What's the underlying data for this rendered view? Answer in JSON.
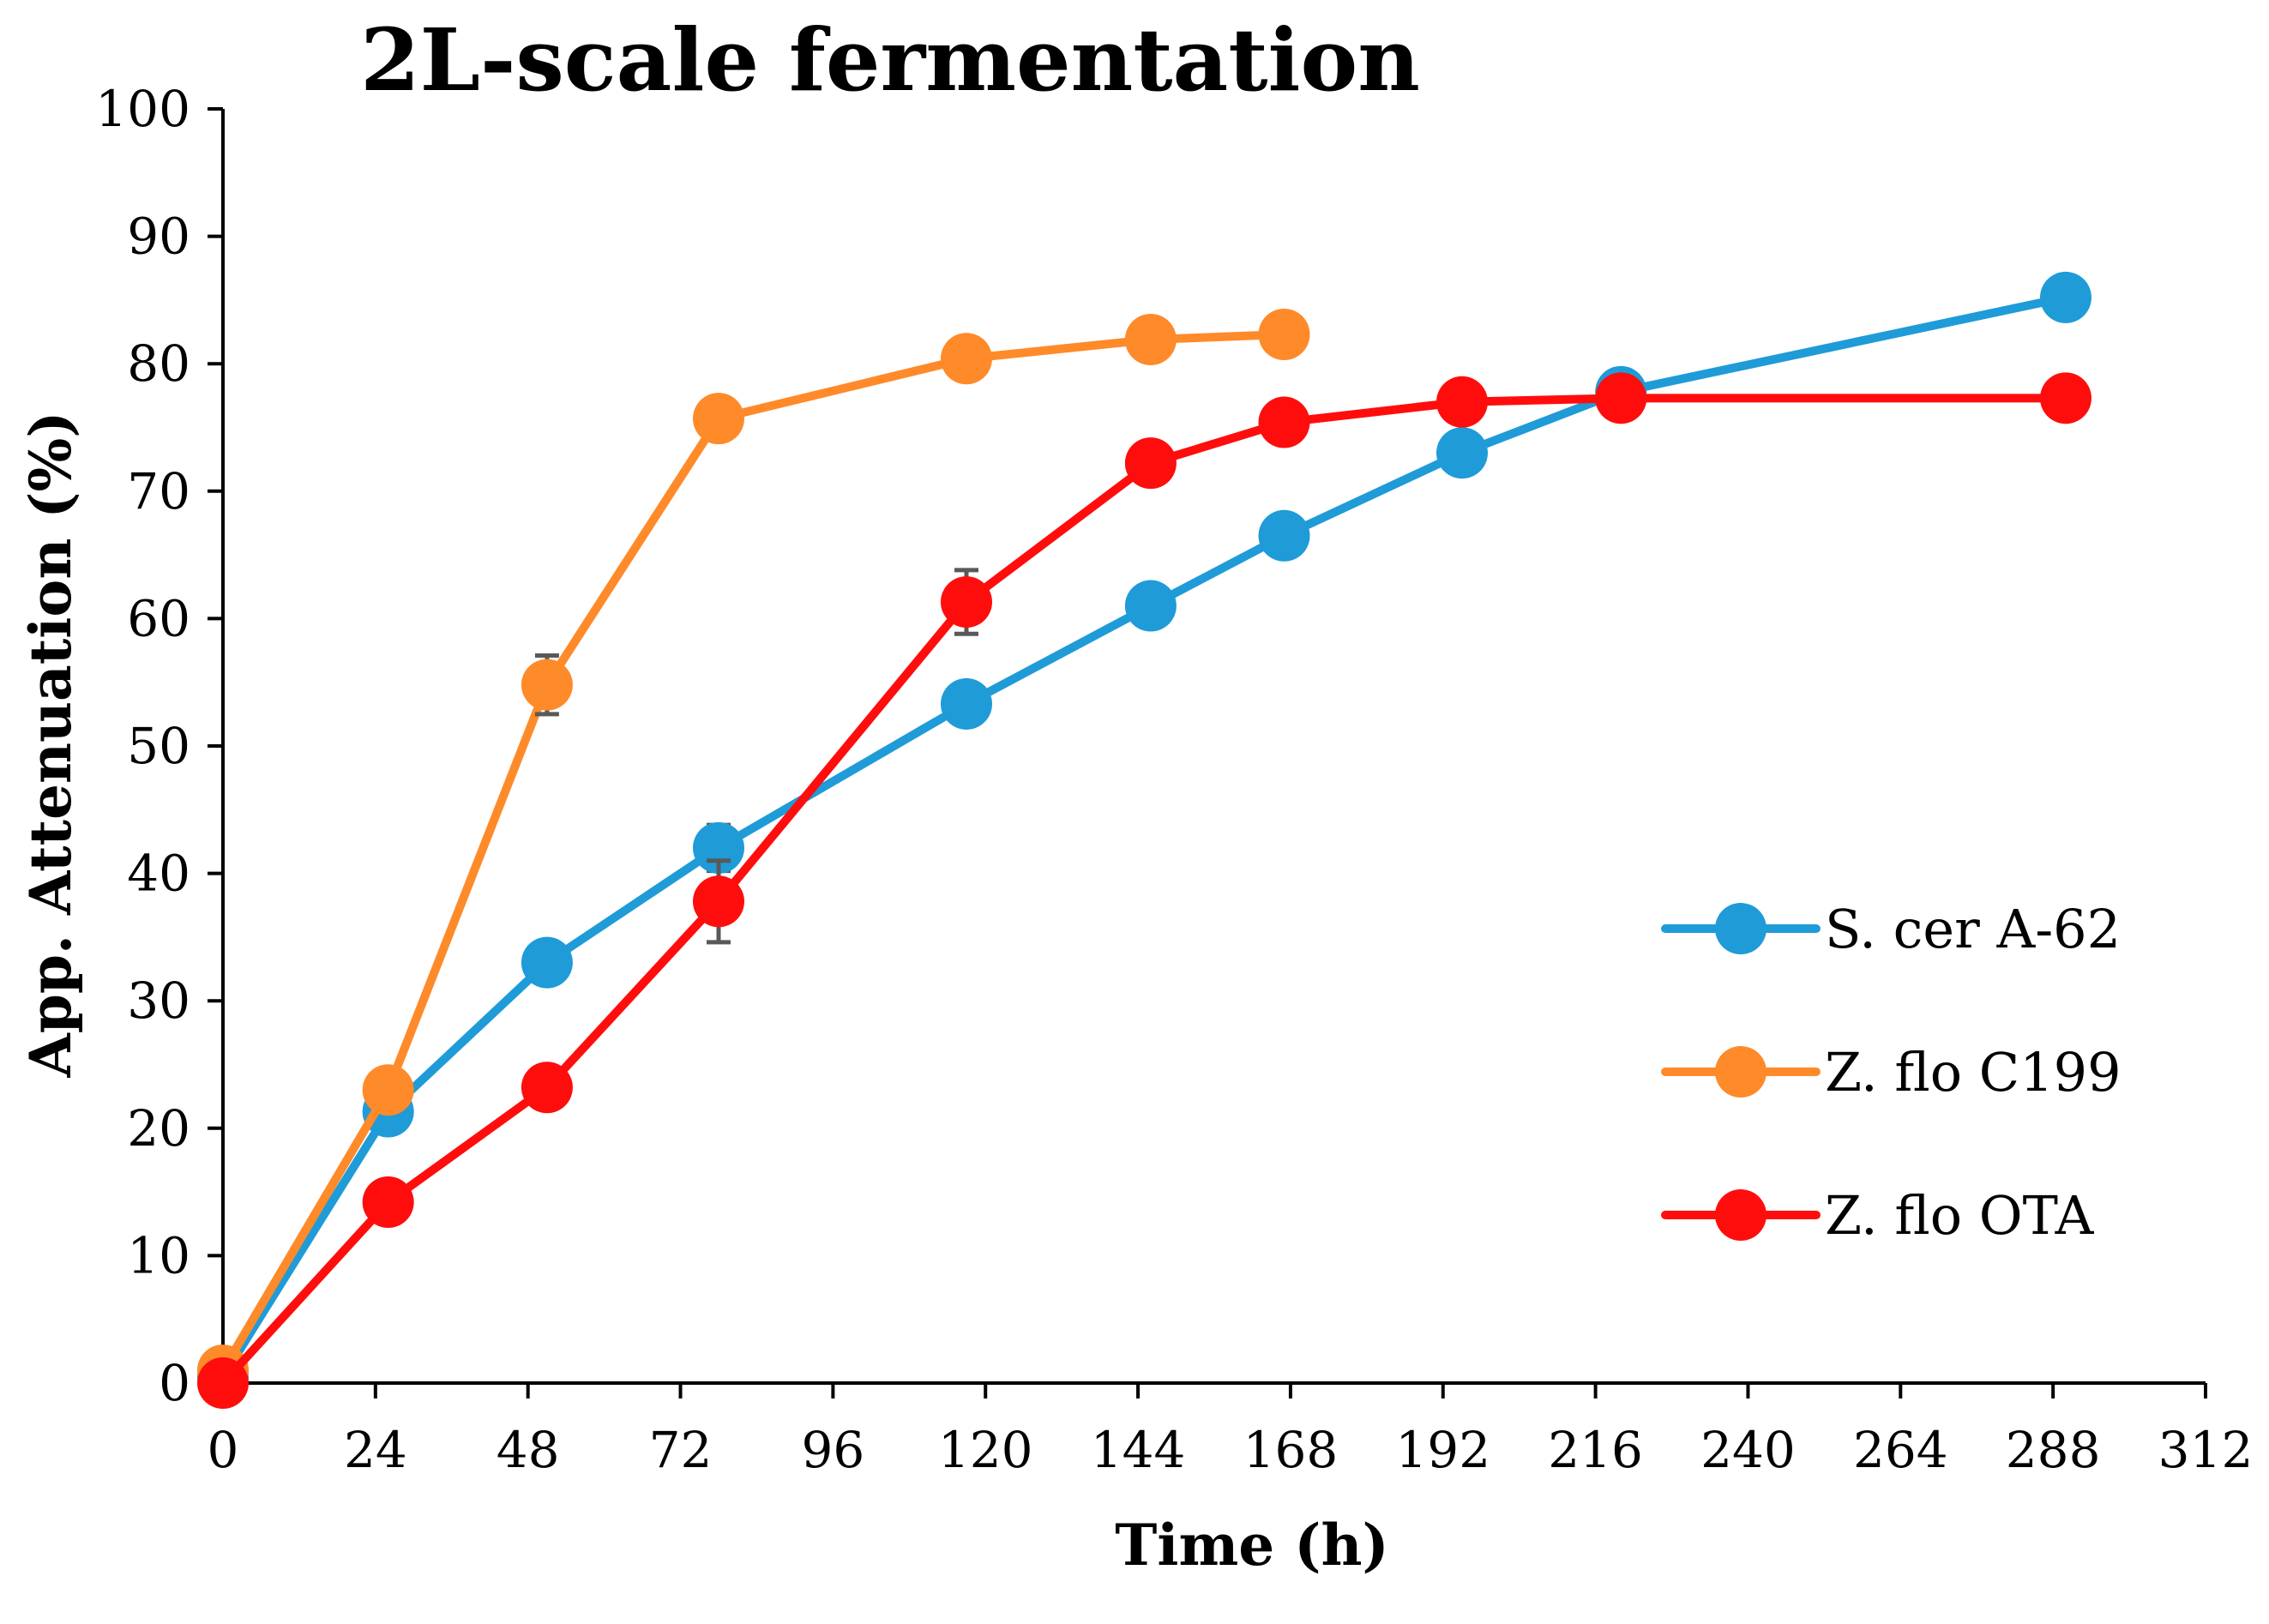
{
  "chart_data": {
    "type": "line",
    "title": "2L-scale fermentation",
    "xlabel": "Time (h)",
    "ylabel": "App. Attenuation (%)",
    "xlim": [
      0,
      312
    ],
    "ylim": [
      0,
      100
    ],
    "xticks": [
      0,
      24,
      48,
      72,
      96,
      120,
      144,
      168,
      192,
      216,
      240,
      264,
      288,
      312
    ],
    "yticks": [
      0,
      10,
      20,
      30,
      40,
      50,
      60,
      70,
      80,
      90,
      100
    ],
    "grid": false,
    "legend_position": "right",
    "series": [
      {
        "name": "S. cer A-62",
        "color": "#1f9bd8",
        "x": [
          0,
          26,
          51,
          78,
          117,
          146,
          167,
          195,
          220,
          290
        ],
        "y": [
          0.5,
          21.3,
          33,
          42,
          53.3,
          61,
          66.5,
          73,
          77.8,
          85.2
        ],
        "err": [
          0,
          0,
          0,
          1.8,
          0,
          0,
          0,
          0,
          0,
          0
        ]
      },
      {
        "name": "Z. flo C199",
        "color": "#ff8a2a",
        "x": [
          0,
          26,
          51,
          78,
          117,
          146,
          167
        ],
        "y": [
          1,
          23,
          54.8,
          75.7,
          80.4,
          81.9,
          82.3
        ],
        "err": [
          0,
          0,
          2.3,
          0,
          0,
          0,
          0
        ]
      },
      {
        "name": "Z. flo OTA",
        "color": "#ff0d0d",
        "x": [
          0,
          26,
          51,
          78,
          117,
          146,
          167,
          195,
          220,
          290
        ],
        "y": [
          0,
          14.2,
          23.2,
          37.8,
          61.3,
          72.2,
          75.4,
          77,
          77.3,
          77.3
        ],
        "err": [
          0,
          0,
          0,
          3.2,
          2.5,
          1.6,
          0,
          0,
          0,
          0
        ]
      }
    ]
  }
}
